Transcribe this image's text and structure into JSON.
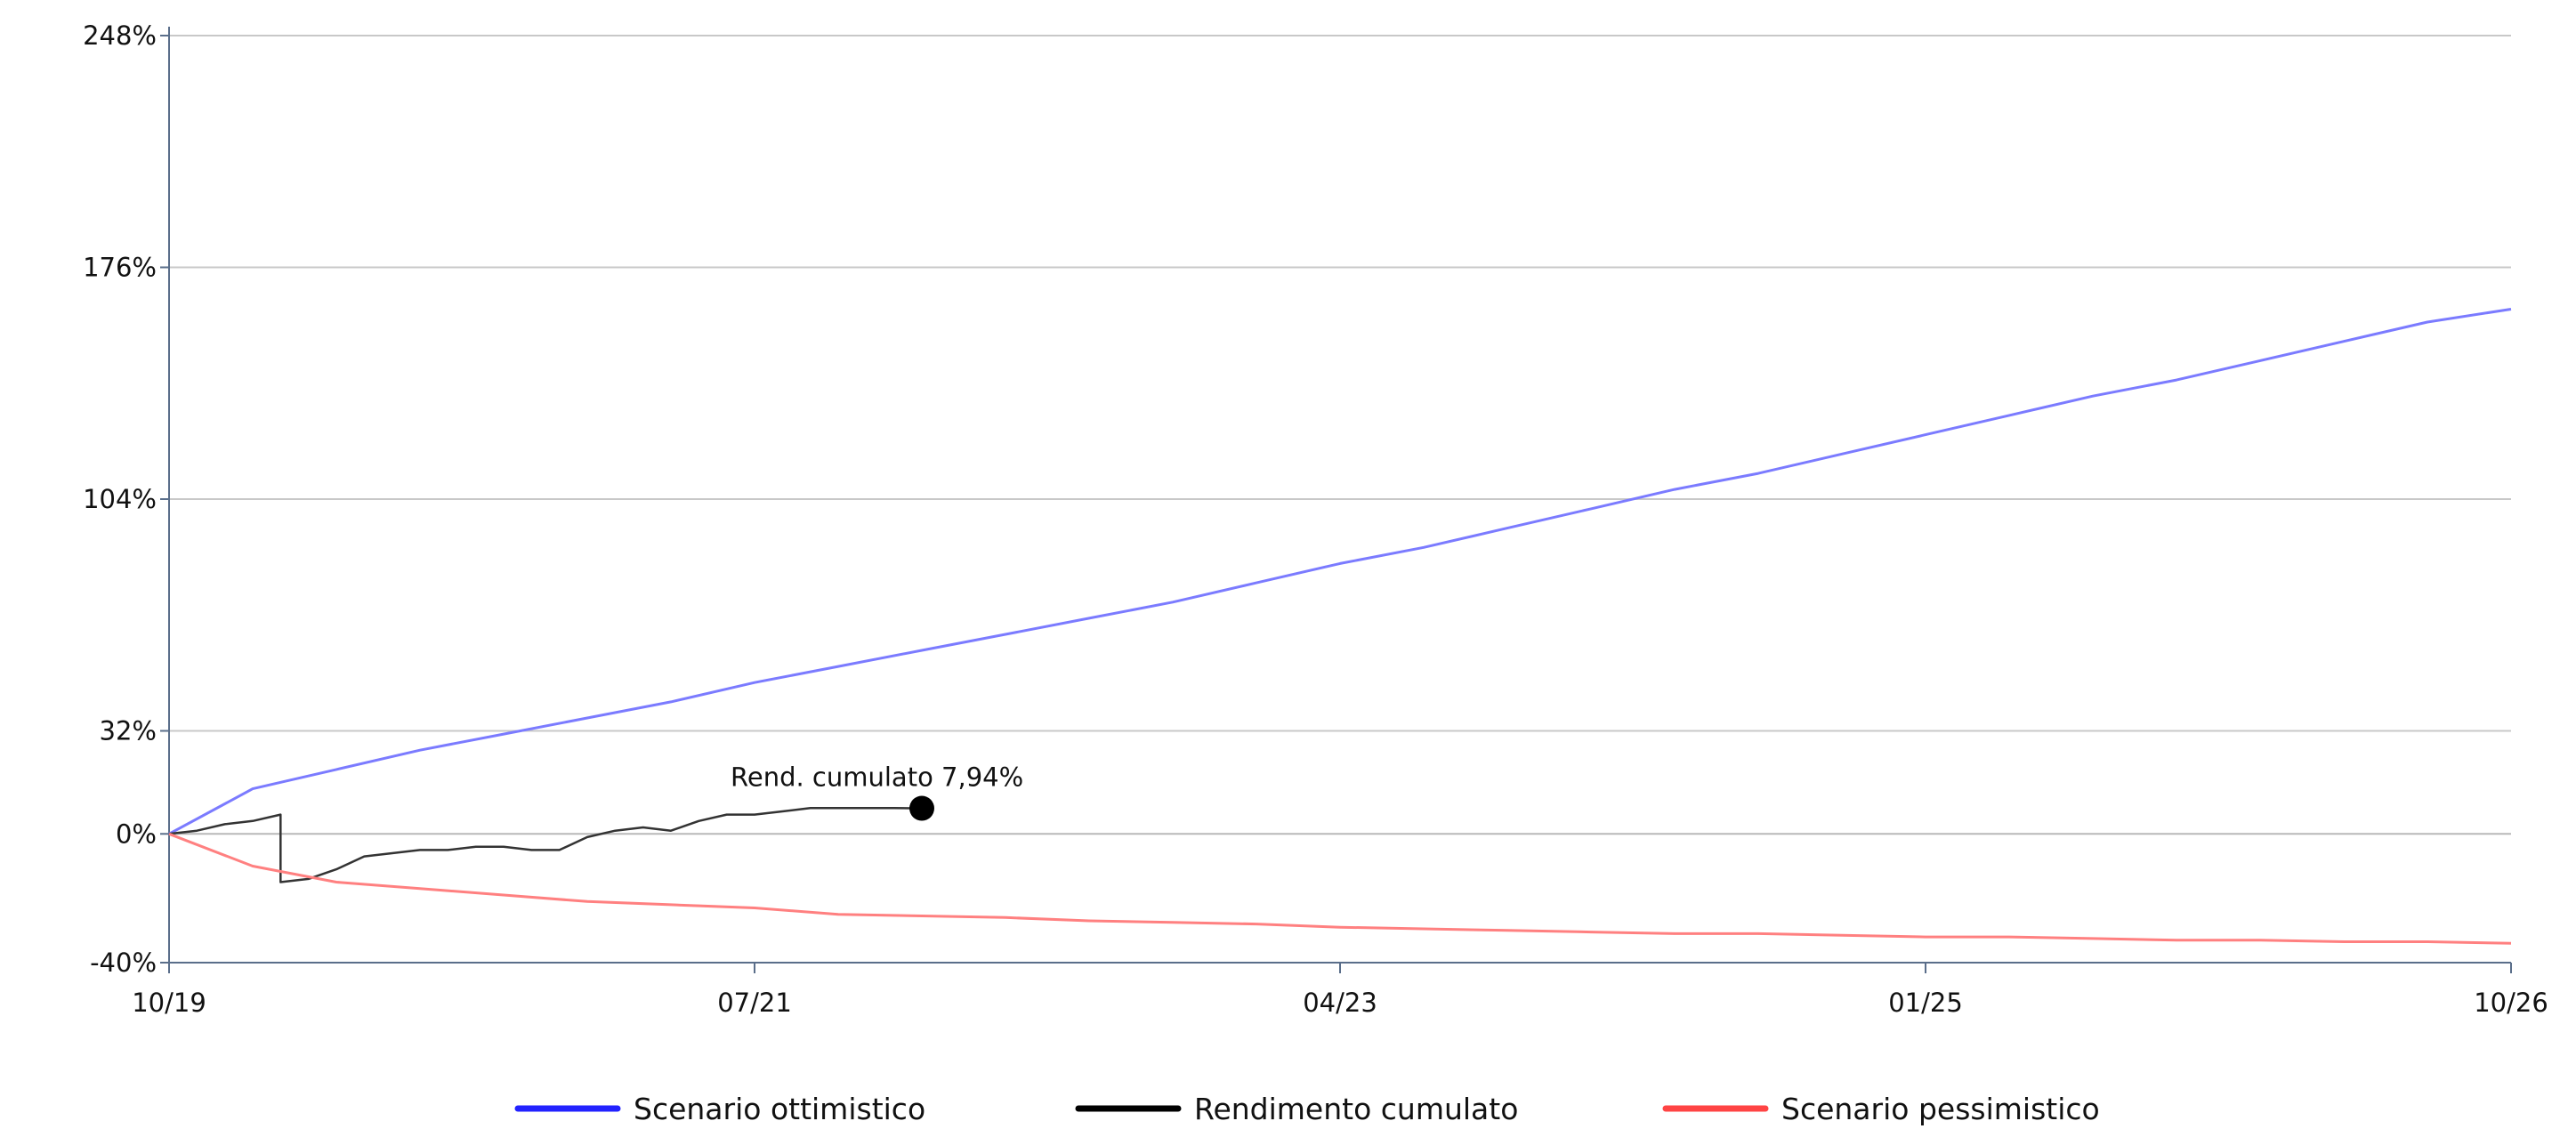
{
  "chart_data": {
    "type": "line",
    "title": "",
    "xlabel": "",
    "ylabel": "",
    "x_tick_labels": [
      "10/19",
      "07/21",
      "04/23",
      "01/25",
      "10/26"
    ],
    "y_tick_labels": [
      "248%",
      "176%",
      "104%",
      "32%",
      "0%",
      "-40%"
    ],
    "ylim": [
      -40,
      248
    ],
    "y_ticks": [
      248,
      176,
      104,
      32,
      0,
      -40
    ],
    "grid": true,
    "legend": "bottom",
    "series": [
      {
        "name": "Scenario ottimistico",
        "color": "#7b7bff",
        "legend_color": "#2222ff",
        "points": [
          [
            "10/19",
            0
          ],
          [
            "01/20",
            14
          ],
          [
            "04/20",
            20
          ],
          [
            "07/20",
            26
          ],
          [
            "10/20",
            31
          ],
          [
            "01/21",
            36
          ],
          [
            "04/21",
            41
          ],
          [
            "07/21",
            47
          ],
          [
            "10/21",
            52
          ],
          [
            "01/22",
            57
          ],
          [
            "04/22",
            62
          ],
          [
            "07/22",
            67
          ],
          [
            "10/22",
            72
          ],
          [
            "01/23",
            78
          ],
          [
            "04/23",
            84
          ],
          [
            "07/23",
            89
          ],
          [
            "10/23",
            95
          ],
          [
            "01/24",
            101
          ],
          [
            "04/24",
            107
          ],
          [
            "07/24",
            112
          ],
          [
            "10/24",
            118
          ],
          [
            "01/25",
            124
          ],
          [
            "04/25",
            130
          ],
          [
            "07/25",
            136
          ],
          [
            "10/25",
            141
          ],
          [
            "01/26",
            147
          ],
          [
            "04/26",
            153
          ],
          [
            "07/26",
            159
          ],
          [
            "10/26",
            163
          ]
        ]
      },
      {
        "name": "Rendimento cumulato",
        "color": "#333333",
        "legend_color": "#000000",
        "points": [
          [
            "10/19",
            0
          ],
          [
            "11/19",
            1
          ],
          [
            "12/19",
            3
          ],
          [
            "01/20",
            4
          ],
          [
            "02/20",
            6
          ],
          [
            "02/20",
            -15
          ],
          [
            "03/20",
            -14
          ],
          [
            "04/20",
            -11
          ],
          [
            "05/20",
            -7
          ],
          [
            "06/20",
            -6
          ],
          [
            "07/20",
            -5
          ],
          [
            "08/20",
            -5
          ],
          [
            "09/20",
            -4
          ],
          [
            "10/20",
            -4
          ],
          [
            "11/20",
            -5
          ],
          [
            "12/20",
            -5
          ],
          [
            "01/21",
            -1
          ],
          [
            "02/21",
            1
          ],
          [
            "03/21",
            2
          ],
          [
            "04/21",
            1
          ],
          [
            "05/21",
            4
          ],
          [
            "06/21",
            6
          ],
          [
            "07/21",
            6
          ],
          [
            "08/21",
            7
          ],
          [
            "09/21",
            8
          ],
          [
            "10/21",
            8
          ],
          [
            "11/21",
            8
          ],
          [
            "12/21",
            8
          ],
          [
            "01/22",
            7.94
          ]
        ],
        "end_label": "Rend. cumulato 7,94%",
        "end_value": 7.94
      },
      {
        "name": "Scenario pessimistico",
        "color": "#ff8080",
        "legend_color": "#ff4444",
        "points": [
          [
            "10/19",
            0
          ],
          [
            "01/20",
            -10
          ],
          [
            "04/20",
            -15
          ],
          [
            "07/20",
            -17
          ],
          [
            "10/20",
            -19
          ],
          [
            "01/21",
            -21
          ],
          [
            "04/21",
            -22
          ],
          [
            "07/21",
            -23
          ],
          [
            "10/21",
            -25
          ],
          [
            "01/22",
            -25.5
          ],
          [
            "04/22",
            -26
          ],
          [
            "07/22",
            -27
          ],
          [
            "10/22",
            -27.5
          ],
          [
            "01/23",
            -28
          ],
          [
            "04/23",
            -29
          ],
          [
            "07/23",
            -29.5
          ],
          [
            "10/23",
            -30
          ],
          [
            "01/24",
            -30.5
          ],
          [
            "04/24",
            -31
          ],
          [
            "07/24",
            -31
          ],
          [
            "10/24",
            -31.5
          ],
          [
            "01/25",
            -32
          ],
          [
            "04/25",
            -32
          ],
          [
            "07/25",
            -32.5
          ],
          [
            "10/25",
            -33
          ],
          [
            "01/26",
            -33
          ],
          [
            "04/26",
            -33.5
          ],
          [
            "07/26",
            -33.5
          ],
          [
            "10/26",
            -34
          ]
        ]
      }
    ]
  }
}
